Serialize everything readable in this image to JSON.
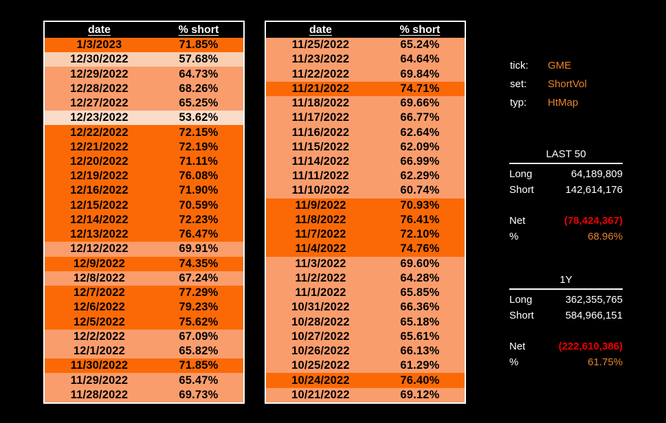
{
  "app": {
    "background": "#000000"
  },
  "colors": {
    "accent_orange": "#E8822B",
    "negative_red": "#EE0000",
    "table_border": "#FFFFFF",
    "table_text": "#000000"
  },
  "heatmap": {
    "levels": [
      {
        "min": 70,
        "color": "#FB6906"
      },
      {
        "min": 60,
        "color": "#FA9D6D"
      },
      {
        "min": 55,
        "color": "#F8CFB1"
      },
      {
        "min": 0,
        "color": "#FADCC8"
      }
    ]
  },
  "tables": [
    {
      "headers": {
        "date": "date",
        "pct": "% short"
      },
      "rows": [
        [
          "1/3/2023",
          "71.85%"
        ],
        [
          "12/30/2022",
          "57.68%"
        ],
        [
          "12/29/2022",
          "64.73%"
        ],
        [
          "12/28/2022",
          "68.26%"
        ],
        [
          "12/27/2022",
          "65.25%"
        ],
        [
          "12/23/2022",
          "53.62%"
        ],
        [
          "12/22/2022",
          "72.15%"
        ],
        [
          "12/21/2022",
          "72.19%"
        ],
        [
          "12/20/2022",
          "71.11%"
        ],
        [
          "12/19/2022",
          "76.08%"
        ],
        [
          "12/16/2022",
          "71.90%"
        ],
        [
          "12/15/2022",
          "70.59%"
        ],
        [
          "12/14/2022",
          "72.23%"
        ],
        [
          "12/13/2022",
          "76.47%"
        ],
        [
          "12/12/2022",
          "69.91%"
        ],
        [
          "12/9/2022",
          "74.35%"
        ],
        [
          "12/8/2022",
          "67.24%"
        ],
        [
          "12/7/2022",
          "77.29%"
        ],
        [
          "12/6/2022",
          "79.23%"
        ],
        [
          "12/5/2022",
          "75.62%"
        ],
        [
          "12/2/2022",
          "67.09%"
        ],
        [
          "12/1/2022",
          "65.82%"
        ],
        [
          "11/30/2022",
          "71.85%"
        ],
        [
          "11/29/2022",
          "65.47%"
        ],
        [
          "11/28/2022",
          "69.73%"
        ]
      ]
    },
    {
      "headers": {
        "date": "date",
        "pct": "% short"
      },
      "rows": [
        [
          "11/25/2022",
          "65.24%"
        ],
        [
          "11/23/2022",
          "64.64%"
        ],
        [
          "11/22/2022",
          "69.84%"
        ],
        [
          "11/21/2022",
          "74.71%"
        ],
        [
          "11/18/2022",
          "69.66%"
        ],
        [
          "11/17/2022",
          "66.77%"
        ],
        [
          "11/16/2022",
          "62.64%"
        ],
        [
          "11/15/2022",
          "62.09%"
        ],
        [
          "11/14/2022",
          "66.99%"
        ],
        [
          "11/11/2022",
          "62.29%"
        ],
        [
          "11/10/2022",
          "60.74%"
        ],
        [
          "11/9/2022",
          "70.93%"
        ],
        [
          "11/8/2022",
          "76.41%"
        ],
        [
          "11/7/2022",
          "72.10%"
        ],
        [
          "11/4/2022",
          "74.76%"
        ],
        [
          "11/3/2022",
          "69.60%"
        ],
        [
          "11/2/2022",
          "64.28%"
        ],
        [
          "11/1/2022",
          "65.85%"
        ],
        [
          "10/31/2022",
          "66.36%"
        ],
        [
          "10/28/2022",
          "65.18%"
        ],
        [
          "10/27/2022",
          "65.61%"
        ],
        [
          "10/26/2022",
          "66.13%"
        ],
        [
          "10/25/2022",
          "61.29%"
        ],
        [
          "10/24/2022",
          "76.40%"
        ],
        [
          "10/21/2022",
          "69.12%"
        ]
      ]
    }
  ],
  "meta": [
    {
      "label": "tick:",
      "value": "GME"
    },
    {
      "label": "set:",
      "value": "ShortVol"
    },
    {
      "label": "typ:",
      "value": "HtMap"
    }
  ],
  "summaries": [
    {
      "title": "LAST 50",
      "long_label": "Long",
      "long_value": "64,189,809",
      "short_label": "Short",
      "short_value": "142,614,176",
      "net_label": "Net",
      "net_value": "(78,424,367)",
      "pct_label": "%",
      "pct_value": "68.96%"
    },
    {
      "title": "1Y",
      "long_label": "Long",
      "long_value": "362,355,765",
      "short_label": "Short",
      "short_value": "584,966,151",
      "net_label": "Net",
      "net_value": "(222,610,386)",
      "pct_label": "%",
      "pct_value": "61.75%"
    }
  ]
}
